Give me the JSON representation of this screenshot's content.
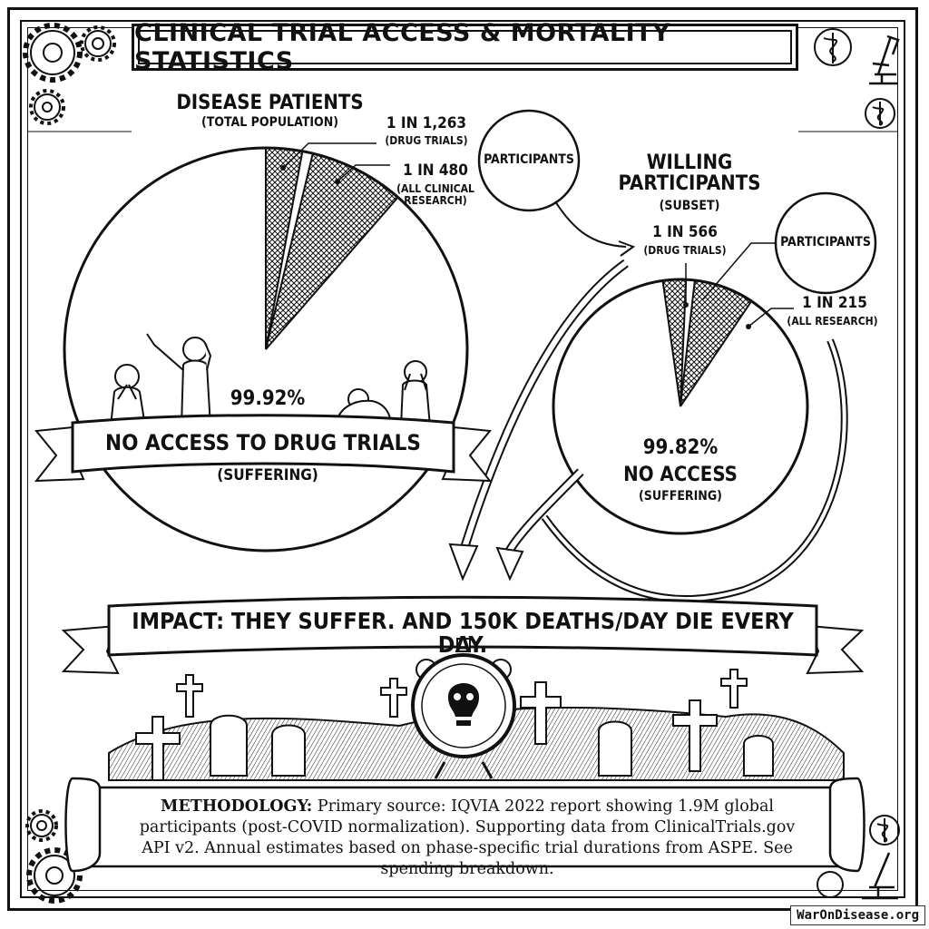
{
  "title": "CLINICAL TRIAL ACCESS & MORTALITY STATISTICS",
  "chart_data": [
    {
      "type": "pie",
      "title": "DISEASE PATIENTS",
      "subtitle": "(TOTAL POPULATION)",
      "slices": [
        {
          "label": "1 IN 1,263",
          "note": "(DRUG TRIALS)",
          "value": 0.08
        },
        {
          "label": "1 IN 480",
          "note": "(ALL CLINICAL RESEARCH)",
          "value": 0.21
        },
        {
          "label": "99.92%",
          "note": "NO ACCESS TO DRUG TRIALS",
          "note2": "(SUFFERING)",
          "value": 99.92
        }
      ],
      "callout": "PARTICIPANTS"
    },
    {
      "type": "pie",
      "title": "WILLING PARTICIPANTS",
      "subtitle": "(SUBSET)",
      "slices": [
        {
          "label": "1 IN 566",
          "note": "(DRUG TRIALS)",
          "value": 0.18
        },
        {
          "label": "1 IN 215",
          "note": "(ALL RESEARCH)",
          "value": 0.47
        },
        {
          "label": "99.82%",
          "note": "NO ACCESS",
          "note2": "(SUFFERING)",
          "value": 99.82
        }
      ],
      "callout": "PARTICIPANTS"
    }
  ],
  "impact": "IMPACT: THEY SUFFER. AND 150K DEATHS/DAY DIE EVERY DAY.",
  "methodology": {
    "label": "METHODOLOGY:",
    "text": "Primary source: IQVIA 2022 report showing 1.9M global participants (post-COVID normalization). Supporting data from ClinicalTrials.gov API v2. Annual estimates based on phase-specific trial durations from ASPE. See spending breakdown."
  },
  "badge": "WarOnDisease.org",
  "icons": [
    "gear-icon",
    "caduceus-icon",
    "microscope-icon",
    "skull-clock-icon",
    "tombstone-icon",
    "cross-icon"
  ]
}
